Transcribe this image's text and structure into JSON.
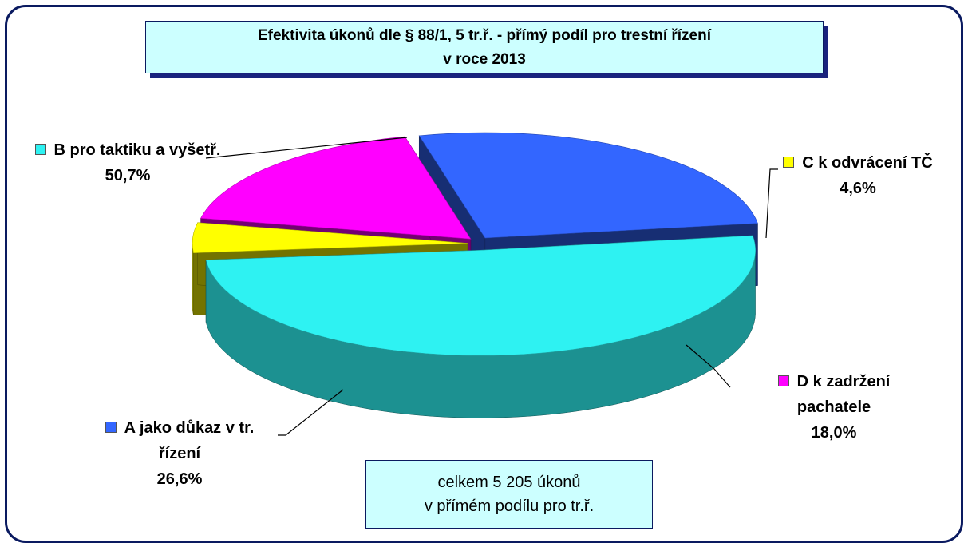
{
  "chart_data": {
    "type": "pie",
    "title": [
      "Efektivita úkonů dle § 88/1, 5 tr.ř. - přímý podíl pro trestní řízení",
      "v roce 2013"
    ],
    "categories": [
      "B pro taktiku a vyšetř.",
      "C k odvrácení TČ",
      "D k zadržení pachatele",
      "A jako důkaz v tr. řízení"
    ],
    "values": [
      50.7,
      4.6,
      18.0,
      26.6
    ],
    "value_labels": [
      "50,7%",
      "4,6%",
      "18,0%",
      "26,6%"
    ],
    "colors": [
      "#2ef2f2",
      "#ffff00",
      "#ff00ff",
      "#3366ff"
    ],
    "note": [
      "celkem  5 205 úkonů",
      "v přímém podílu pro tr.ř."
    ]
  }
}
